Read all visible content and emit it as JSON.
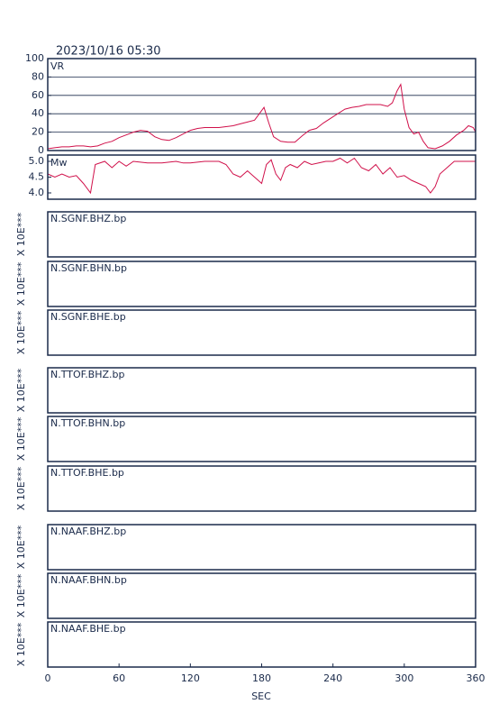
{
  "title": "2023/10/16 05:30",
  "xaxis": {
    "label": "SEC",
    "xlim": [
      0,
      360
    ],
    "xticks": [
      0,
      60,
      120,
      180,
      240,
      300,
      360
    ]
  },
  "chart_data": [
    {
      "type": "line",
      "label": "VR",
      "color": "#d0104a",
      "grid": true,
      "ylim": [
        0,
        100
      ],
      "yticks": [
        0,
        20,
        40,
        60,
        80,
        100
      ],
      "x": [
        0,
        6,
        12,
        18,
        24,
        30,
        36,
        42,
        48,
        54,
        60,
        66,
        72,
        78,
        84,
        90,
        96,
        102,
        108,
        114,
        120,
        126,
        132,
        138,
        144,
        150,
        156,
        162,
        168,
        174,
        178,
        182,
        186,
        190,
        196,
        202,
        208,
        214,
        220,
        226,
        232,
        238,
        244,
        250,
        256,
        262,
        268,
        274,
        280,
        286,
        290,
        294,
        297,
        300,
        304,
        308,
        312,
        316,
        320,
        326,
        332,
        338,
        344,
        350,
        354,
        358,
        360
      ],
      "values": [
        2,
        3,
        4,
        4,
        5,
        5,
        4,
        5,
        8,
        10,
        14,
        17,
        20,
        22,
        21,
        15,
        12,
        11,
        14,
        18,
        22,
        24,
        25,
        25,
        25,
        26,
        27,
        29,
        31,
        33,
        40,
        47,
        30,
        15,
        10,
        9,
        9,
        16,
        22,
        24,
        30,
        35,
        40,
        45,
        47,
        48,
        50,
        50,
        50,
        48,
        52,
        65,
        72,
        45,
        25,
        18,
        20,
        10,
        3,
        2,
        5,
        10,
        17,
        22,
        27,
        25,
        20
      ]
    },
    {
      "type": "line",
      "label": "Mw",
      "color": "#d0104a",
      "grid": false,
      "ylim": [
        3.8,
        5.2
      ],
      "yticks": [
        {
          "value": 4,
          "label": "4.0"
        },
        4.5,
        {
          "value": 5,
          "label": "5.0"
        }
      ],
      "x": [
        0,
        6,
        12,
        18,
        24,
        30,
        36,
        40,
        48,
        54,
        60,
        66,
        72,
        84,
        96,
        108,
        114,
        120,
        132,
        144,
        150,
        156,
        162,
        168,
        174,
        180,
        184,
        188,
        192,
        196,
        200,
        204,
        210,
        216,
        222,
        228,
        234,
        240,
        246,
        252,
        258,
        264,
        270,
        276,
        282,
        288,
        294,
        300,
        306,
        312,
        318,
        322,
        326,
        330,
        336,
        342,
        348,
        354,
        360
      ],
      "values": [
        4.6,
        4.5,
        4.6,
        4.5,
        4.55,
        4.3,
        4.0,
        4.9,
        5.0,
        4.8,
        5.0,
        4.85,
        5.0,
        4.95,
        4.95,
        5.0,
        4.95,
        4.95,
        5.0,
        5.0,
        4.9,
        4.6,
        4.5,
        4.7,
        4.5,
        4.3,
        4.9,
        5.05,
        4.6,
        4.4,
        4.8,
        4.9,
        4.8,
        5.0,
        4.9,
        4.95,
        5.0,
        5.0,
        5.1,
        4.95,
        5.1,
        4.8,
        4.7,
        4.9,
        4.6,
        4.8,
        4.5,
        4.55,
        4.4,
        4.3,
        4.2,
        4.0,
        4.2,
        4.6,
        4.8,
        5.0,
        5.0,
        5.0,
        5.0
      ]
    }
  ],
  "traces": [
    {
      "label": "N.SGNF.BHZ.bp",
      "ylabel": "X 10E***"
    },
    {
      "label": "N.SGNF.BHN.bp",
      "ylabel": "X 10E***"
    },
    {
      "label": "N.SGNF.BHE.bp",
      "ylabel": "X 10E***"
    },
    {
      "label": "N.TTOF.BHZ.bp",
      "ylabel": "X 10E***"
    },
    {
      "label": "N.TTOF.BHN.bp",
      "ylabel": "X 10E***"
    },
    {
      "label": "N.TTOF.BHE.bp",
      "ylabel": "X 10E***"
    },
    {
      "label": "N.NAAF.BHZ.bp",
      "ylabel": "X 10E***"
    },
    {
      "label": "N.NAAF.BHN.bp",
      "ylabel": "X 10E***"
    },
    {
      "label": "N.NAAF.BHE.bp",
      "ylabel": "X 10E***"
    }
  ]
}
